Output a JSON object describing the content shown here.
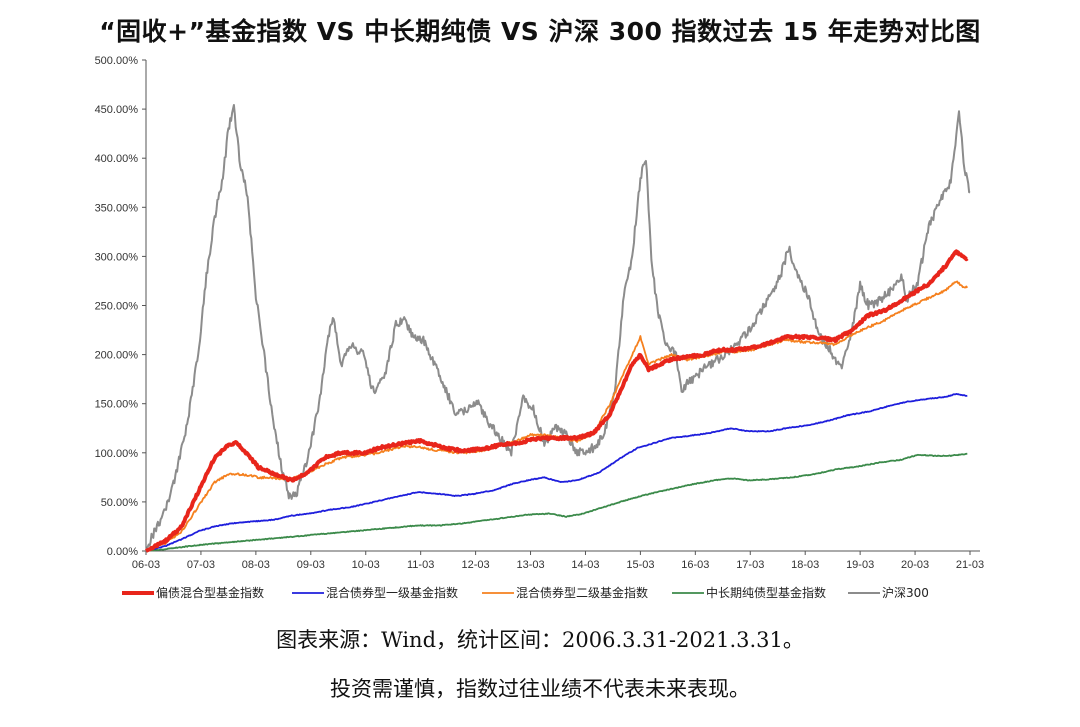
{
  "chart_data": {
    "type": "line",
    "title": "“固收+”基金指数 VS 中长期纯债 VS 沪深 300 指数过去 15 年走势对比图",
    "x_ticks": [
      "06-03",
      "07-03",
      "08-03",
      "09-03",
      "10-03",
      "11-03",
      "12-03",
      "13-03",
      "14-03",
      "15-03",
      "16-03",
      "17-03",
      "18-03",
      "19-03",
      "20-03",
      "21-03"
    ],
    "y_ticks": [
      "0.00%",
      "50.00%",
      "100.00%",
      "150.00%",
      "200.00%",
      "250.00%",
      "300.00%",
      "350.00%",
      "400.00%",
      "450.00%",
      "500.00%"
    ],
    "ylim": [
      0,
      500
    ],
    "xlim": [
      2006.25,
      2021.25
    ],
    "grid": false,
    "legend_position": "bottom",
    "series": [
      {
        "name": "偏债混合型基金指数",
        "color": "#e8251b",
        "width": 4,
        "points": [
          [
            2006.25,
            0
          ],
          [
            2006.6,
            10
          ],
          [
            2006.9,
            25
          ],
          [
            2007.2,
            60
          ],
          [
            2007.5,
            95
          ],
          [
            2007.75,
            108
          ],
          [
            2007.9,
            110
          ],
          [
            2008.1,
            98
          ],
          [
            2008.3,
            85
          ],
          [
            2008.6,
            78
          ],
          [
            2008.9,
            72
          ],
          [
            2009.2,
            80
          ],
          [
            2009.5,
            95
          ],
          [
            2009.8,
            100
          ],
          [
            2010.25,
            100
          ],
          [
            2010.5,
            105
          ],
          [
            2010.75,
            108
          ],
          [
            2011.0,
            110
          ],
          [
            2011.25,
            112
          ],
          [
            2011.5,
            108
          ],
          [
            2011.8,
            104
          ],
          [
            2012.0,
            102
          ],
          [
            2012.4,
            104
          ],
          [
            2012.7,
            108
          ],
          [
            2013.0,
            110
          ],
          [
            2013.25,
            113
          ],
          [
            2013.5,
            115
          ],
          [
            2013.8,
            115
          ],
          [
            2014.1,
            115
          ],
          [
            2014.4,
            120
          ],
          [
            2014.7,
            140
          ],
          [
            2014.9,
            165
          ],
          [
            2015.1,
            190
          ],
          [
            2015.25,
            200
          ],
          [
            2015.4,
            185
          ],
          [
            2015.6,
            190
          ],
          [
            2015.8,
            195
          ],
          [
            2016.1,
            198
          ],
          [
            2016.4,
            200
          ],
          [
            2016.7,
            205
          ],
          [
            2017.0,
            205
          ],
          [
            2017.3,
            207
          ],
          [
            2017.6,
            212
          ],
          [
            2017.9,
            218
          ],
          [
            2018.2,
            218
          ],
          [
            2018.5,
            217
          ],
          [
            2018.8,
            215
          ],
          [
            2019.1,
            225
          ],
          [
            2019.4,
            240
          ],
          [
            2019.7,
            245
          ],
          [
            2020.0,
            255
          ],
          [
            2020.2,
            262
          ],
          [
            2020.5,
            272
          ],
          [
            2020.8,
            290
          ],
          [
            2021.0,
            305
          ],
          [
            2021.1,
            300
          ],
          [
            2021.2,
            298
          ]
        ]
      },
      {
        "name": "混合债券型一级基金指数",
        "color": "#1e1edc",
        "width": 1.8,
        "points": [
          [
            2006.25,
            0
          ],
          [
            2006.6,
            5
          ],
          [
            2006.9,
            12
          ],
          [
            2007.2,
            20
          ],
          [
            2007.5,
            25
          ],
          [
            2007.8,
            28
          ],
          [
            2008.2,
            30
          ],
          [
            2008.6,
            32
          ],
          [
            2008.9,
            36
          ],
          [
            2009.2,
            38
          ],
          [
            2009.6,
            42
          ],
          [
            2010.0,
            45
          ],
          [
            2010.4,
            50
          ],
          [
            2010.8,
            55
          ],
          [
            2011.2,
            60
          ],
          [
            2011.6,
            58
          ],
          [
            2011.9,
            56
          ],
          [
            2012.2,
            58
          ],
          [
            2012.6,
            62
          ],
          [
            2012.9,
            68
          ],
          [
            2013.2,
            72
          ],
          [
            2013.5,
            75
          ],
          [
            2013.8,
            70
          ],
          [
            2014.1,
            72
          ],
          [
            2014.5,
            80
          ],
          [
            2014.9,
            95
          ],
          [
            2015.2,
            105
          ],
          [
            2015.5,
            110
          ],
          [
            2015.8,
            115
          ],
          [
            2016.1,
            117
          ],
          [
            2016.5,
            120
          ],
          [
            2016.9,
            125
          ],
          [
            2017.2,
            122
          ],
          [
            2017.6,
            122
          ],
          [
            2017.9,
            125
          ],
          [
            2018.3,
            128
          ],
          [
            2018.7,
            133
          ],
          [
            2019.0,
            138
          ],
          [
            2019.4,
            142
          ],
          [
            2019.8,
            148
          ],
          [
            2020.1,
            152
          ],
          [
            2020.5,
            155
          ],
          [
            2020.8,
            157
          ],
          [
            2021.0,
            160
          ],
          [
            2021.2,
            158
          ]
        ]
      },
      {
        "name": "混合债券型二级基金指数",
        "color": "#f5801e",
        "width": 1.8,
        "points": [
          [
            2006.25,
            0
          ],
          [
            2006.6,
            8
          ],
          [
            2006.9,
            20
          ],
          [
            2007.2,
            45
          ],
          [
            2007.5,
            70
          ],
          [
            2007.75,
            78
          ],
          [
            2008.0,
            78
          ],
          [
            2008.3,
            75
          ],
          [
            2008.6,
            74
          ],
          [
            2008.9,
            73
          ],
          [
            2009.2,
            80
          ],
          [
            2009.5,
            88
          ],
          [
            2009.8,
            95
          ],
          [
            2010.25,
            98
          ],
          [
            2010.5,
            100
          ],
          [
            2010.8,
            105
          ],
          [
            2011.0,
            107
          ],
          [
            2011.3,
            105
          ],
          [
            2011.6,
            102
          ],
          [
            2012.0,
            100
          ],
          [
            2012.4,
            102
          ],
          [
            2012.7,
            108
          ],
          [
            2013.0,
            112
          ],
          [
            2013.25,
            118
          ],
          [
            2013.5,
            118
          ],
          [
            2013.8,
            115
          ],
          [
            2014.1,
            112
          ],
          [
            2014.4,
            120
          ],
          [
            2014.7,
            150
          ],
          [
            2014.9,
            175
          ],
          [
            2015.1,
            200
          ],
          [
            2015.25,
            218
          ],
          [
            2015.4,
            190
          ],
          [
            2015.6,
            195
          ],
          [
            2015.8,
            200
          ],
          [
            2016.1,
            195
          ],
          [
            2016.4,
            198
          ],
          [
            2016.7,
            202
          ],
          [
            2017.0,
            203
          ],
          [
            2017.3,
            205
          ],
          [
            2017.6,
            210
          ],
          [
            2017.9,
            215
          ],
          [
            2018.2,
            213
          ],
          [
            2018.5,
            212
          ],
          [
            2018.8,
            210
          ],
          [
            2019.1,
            220
          ],
          [
            2019.4,
            228
          ],
          [
            2019.7,
            235
          ],
          [
            2020.0,
            245
          ],
          [
            2020.2,
            250
          ],
          [
            2020.5,
            258
          ],
          [
            2020.8,
            265
          ],
          [
            2021.0,
            275
          ],
          [
            2021.1,
            270
          ],
          [
            2021.2,
            268
          ]
        ]
      },
      {
        "name": "中长期纯债型基金指数",
        "color": "#3b8a4a",
        "width": 1.8,
        "points": [
          [
            2006.25,
            0
          ],
          [
            2006.6,
            2
          ],
          [
            2006.9,
            4
          ],
          [
            2007.2,
            6
          ],
          [
            2007.6,
            8
          ],
          [
            2008.0,
            10
          ],
          [
            2008.4,
            12
          ],
          [
            2008.8,
            14
          ],
          [
            2009.2,
            16
          ],
          [
            2009.6,
            18
          ],
          [
            2010.0,
            20
          ],
          [
            2010.4,
            22
          ],
          [
            2010.8,
            24
          ],
          [
            2011.2,
            26
          ],
          [
            2011.6,
            26
          ],
          [
            2012.0,
            28
          ],
          [
            2012.4,
            31
          ],
          [
            2012.8,
            34
          ],
          [
            2013.2,
            37
          ],
          [
            2013.6,
            38
          ],
          [
            2013.9,
            35
          ],
          [
            2014.2,
            38
          ],
          [
            2014.6,
            45
          ],
          [
            2015.0,
            52
          ],
          [
            2015.4,
            58
          ],
          [
            2015.8,
            63
          ],
          [
            2016.2,
            68
          ],
          [
            2016.6,
            72
          ],
          [
            2016.9,
            74
          ],
          [
            2017.2,
            72
          ],
          [
            2017.6,
            73
          ],
          [
            2018.0,
            75
          ],
          [
            2018.4,
            78
          ],
          [
            2018.8,
            83
          ],
          [
            2019.2,
            86
          ],
          [
            2019.6,
            90
          ],
          [
            2020.0,
            93
          ],
          [
            2020.3,
            98
          ],
          [
            2020.6,
            97
          ],
          [
            2020.9,
            97
          ],
          [
            2021.2,
            99
          ]
        ]
      },
      {
        "name": "沪深300",
        "color": "#8c8c8c",
        "width": 2,
        "points": [
          [
            2006.25,
            0
          ],
          [
            2006.4,
            20
          ],
          [
            2006.6,
            40
          ],
          [
            2006.8,
            80
          ],
          [
            2007.0,
            130
          ],
          [
            2007.2,
            200
          ],
          [
            2007.35,
            280
          ],
          [
            2007.5,
            340
          ],
          [
            2007.65,
            380
          ],
          [
            2007.75,
            430
          ],
          [
            2007.85,
            450
          ],
          [
            2007.95,
            400
          ],
          [
            2008.1,
            360
          ],
          [
            2008.25,
            260
          ],
          [
            2008.4,
            200
          ],
          [
            2008.55,
            140
          ],
          [
            2008.7,
            90
          ],
          [
            2008.85,
            55
          ],
          [
            2009.0,
            60
          ],
          [
            2009.2,
            95
          ],
          [
            2009.4,
            150
          ],
          [
            2009.55,
            210
          ],
          [
            2009.65,
            240
          ],
          [
            2009.8,
            190
          ],
          [
            2010.0,
            210
          ],
          [
            2010.2,
            200
          ],
          [
            2010.4,
            160
          ],
          [
            2010.6,
            180
          ],
          [
            2010.8,
            230
          ],
          [
            2010.95,
            235
          ],
          [
            2011.1,
            220
          ],
          [
            2011.3,
            215
          ],
          [
            2011.5,
            190
          ],
          [
            2011.7,
            165
          ],
          [
            2011.9,
            140
          ],
          [
            2012.1,
            145
          ],
          [
            2012.3,
            150
          ],
          [
            2012.5,
            130
          ],
          [
            2012.7,
            115
          ],
          [
            2012.9,
            100
          ],
          [
            2013.1,
            155
          ],
          [
            2013.3,
            145
          ],
          [
            2013.5,
            110
          ],
          [
            2013.7,
            125
          ],
          [
            2013.9,
            120
          ],
          [
            2014.1,
            100
          ],
          [
            2014.4,
            105
          ],
          [
            2014.6,
            120
          ],
          [
            2014.8,
            170
          ],
          [
            2014.95,
            260
          ],
          [
            2015.1,
            300
          ],
          [
            2015.25,
            380
          ],
          [
            2015.35,
            400
          ],
          [
            2015.45,
            300
          ],
          [
            2015.55,
            250
          ],
          [
            2015.7,
            210
          ],
          [
            2015.9,
            200
          ],
          [
            2016.0,
            165
          ],
          [
            2016.2,
            175
          ],
          [
            2016.5,
            190
          ],
          [
            2016.8,
            200
          ],
          [
            2017.0,
            210
          ],
          [
            2017.3,
            230
          ],
          [
            2017.6,
            260
          ],
          [
            2017.8,
            280
          ],
          [
            2017.95,
            310
          ],
          [
            2018.1,
            280
          ],
          [
            2018.3,
            260
          ],
          [
            2018.5,
            220
          ],
          [
            2018.7,
            205
          ],
          [
            2018.9,
            185
          ],
          [
            2019.1,
            225
          ],
          [
            2019.25,
            270
          ],
          [
            2019.4,
            250
          ],
          [
            2019.6,
            255
          ],
          [
            2019.8,
            265
          ],
          [
            2020.0,
            280
          ],
          [
            2020.1,
            255
          ],
          [
            2020.3,
            275
          ],
          [
            2020.5,
            330
          ],
          [
            2020.7,
            355
          ],
          [
            2020.9,
            375
          ],
          [
            2021.05,
            445
          ],
          [
            2021.15,
            390
          ],
          [
            2021.25,
            365
          ]
        ]
      }
    ]
  },
  "footnote": {
    "source": "图表来源：Wind，统计区间：2006.3.31-2021.3.31。",
    "disclaimer": "投资需谨慎，指数过往业绩不代表未来表现。"
  }
}
